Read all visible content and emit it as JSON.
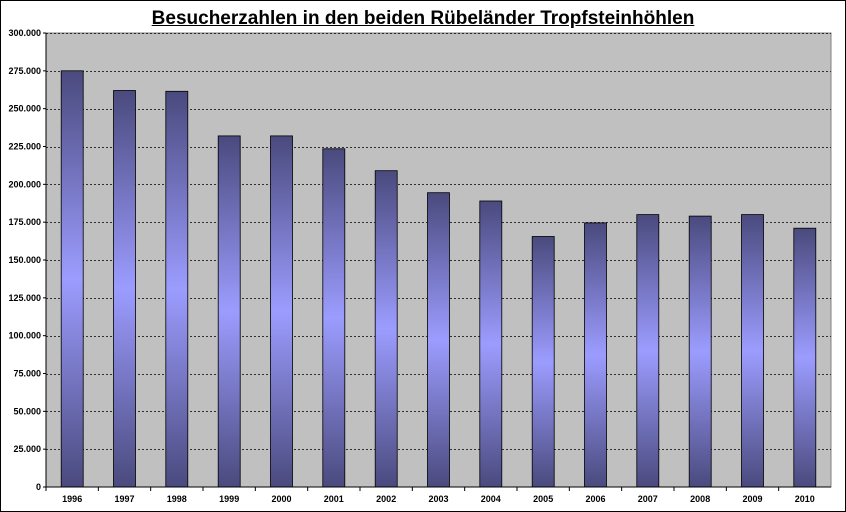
{
  "chart_data": {
    "type": "bar",
    "title": "Besucherzahlen in den beiden Rübeländer Tropfsteinhöhlen",
    "xlabel": "",
    "ylabel": "",
    "categories": [
      "1996",
      "1997",
      "1998",
      "1999",
      "2000",
      "2001",
      "2002",
      "2003",
      "2004",
      "2005",
      "2006",
      "2007",
      "2008",
      "2009",
      "2010"
    ],
    "values": [
      275000,
      262000,
      261500,
      232000,
      232000,
      223500,
      209000,
      194500,
      189000,
      165500,
      174500,
      180000,
      179000,
      180000,
      171000
    ],
    "ylim": [
      0,
      300000
    ],
    "yticks": [
      0,
      25000,
      50000,
      75000,
      100000,
      125000,
      150000,
      175000,
      200000,
      225000,
      250000,
      275000,
      300000
    ],
    "ytick_labels": [
      "0",
      "25.000",
      "50.000",
      "75.000",
      "100.000",
      "125.000",
      "150.000",
      "175.000",
      "200.000",
      "225.000",
      "250.000",
      "275.000",
      "300.000"
    ],
    "grid": true,
    "legend": "none",
    "colors": {
      "plot_background": "#c0c0c0",
      "bar_edge": "#4a4a7e",
      "bar_center": "#9c9cff",
      "gridline": "#000000"
    }
  }
}
